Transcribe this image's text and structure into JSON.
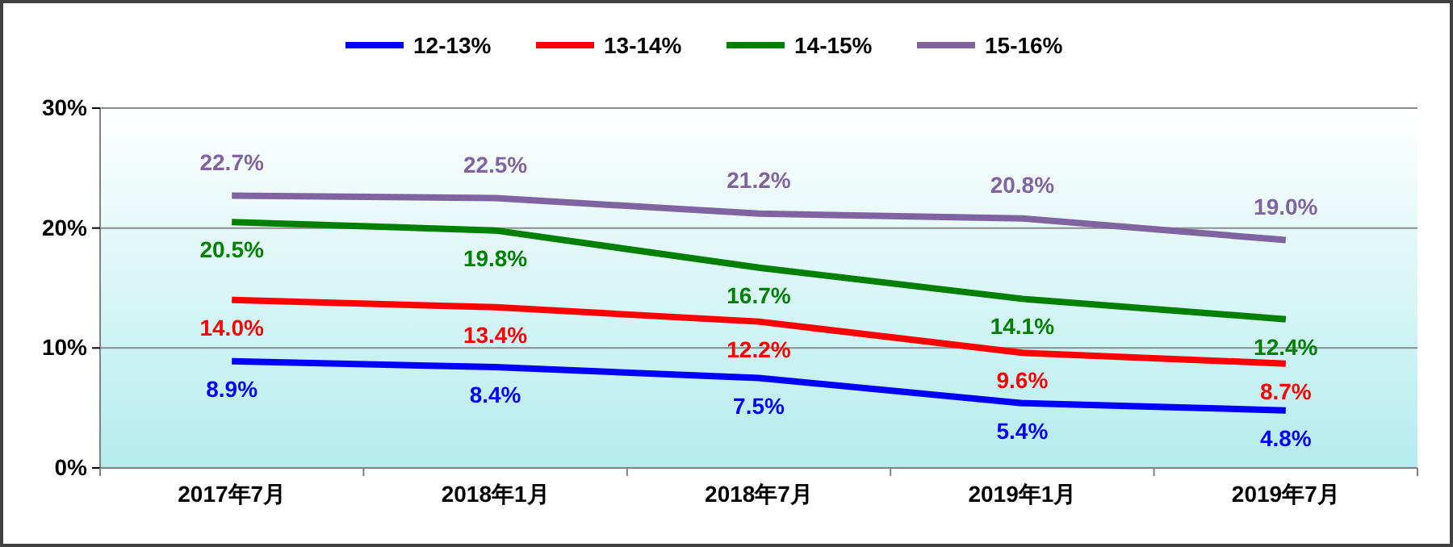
{
  "chart_data": {
    "type": "line",
    "categories": [
      "2017年7月",
      "2018年1月",
      "2018年7月",
      "2019年1月",
      "2019年7月"
    ],
    "series": [
      {
        "name": "12-13%",
        "color": "#0000ff",
        "values": [
          8.9,
          8.4,
          7.5,
          5.4,
          4.8
        ],
        "value_labels": [
          "8.9%",
          "8.4%",
          "7.5%",
          "5.4%",
          "4.8%"
        ]
      },
      {
        "name": "13-14%",
        "color": "#ff0000",
        "values": [
          14.0,
          13.4,
          12.2,
          9.6,
          8.7
        ],
        "value_labels": [
          "14.0%",
          "13.4%",
          "12.2%",
          "9.6%",
          "8.7%"
        ]
      },
      {
        "name": "14-15%",
        "color": "#008000",
        "values": [
          20.5,
          19.8,
          16.7,
          14.1,
          12.4
        ],
        "value_labels": [
          "20.5%",
          "19.8%",
          "16.7%",
          "14.1%",
          "12.4%"
        ]
      },
      {
        "name": "15-16%",
        "color": "#8064a2",
        "values": [
          22.7,
          22.5,
          21.2,
          20.8,
          19.0
        ],
        "value_labels": [
          "22.7%",
          "22.5%",
          "21.2%",
          "20.8%",
          "19.0%"
        ]
      }
    ],
    "ylim": [
      0,
      30
    ],
    "yticks": [
      {
        "value": 0,
        "label": "0%"
      },
      {
        "value": 10,
        "label": "10%"
      },
      {
        "value": 20,
        "label": "20%"
      },
      {
        "value": 30,
        "label": "30%"
      }
    ],
    "grid": "y",
    "legend": "top",
    "marker": "none",
    "line_style": "solid"
  }
}
